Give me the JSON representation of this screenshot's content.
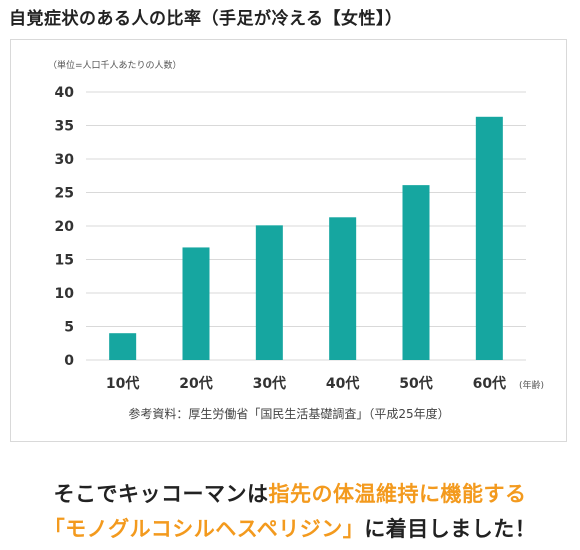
{
  "title": "自覚症状のある人の比率（手足が冷える【女性】）",
  "chart_data": {
    "type": "bar",
    "unit_note": "（単位=人口千人あたりの人数）",
    "categories": [
      "10代",
      "20代",
      "30代",
      "40代",
      "50代",
      "60代"
    ],
    "values": [
      4.0,
      16.8,
      20.1,
      21.3,
      26.1,
      36.3
    ],
    "ylim": [
      0,
      40
    ],
    "yticks": [
      0,
      5,
      10,
      15,
      20,
      25,
      30,
      35,
      40
    ],
    "x_axis_unit": "(年齢)",
    "grid": true,
    "bar_color": "#16a6a0",
    "source": "参考資料：厚生労働省「国民生活基礎調査」（平成25年度）"
  },
  "message": {
    "line1_plain": "そこでキッコーマンは",
    "line1_highlight": "指先の体温維持に機能する",
    "line2_highlight": "「モノグルコシルヘスペリジン」",
    "line2_plain": "に着目しました！",
    "highlight_color": "#f39a1e"
  }
}
